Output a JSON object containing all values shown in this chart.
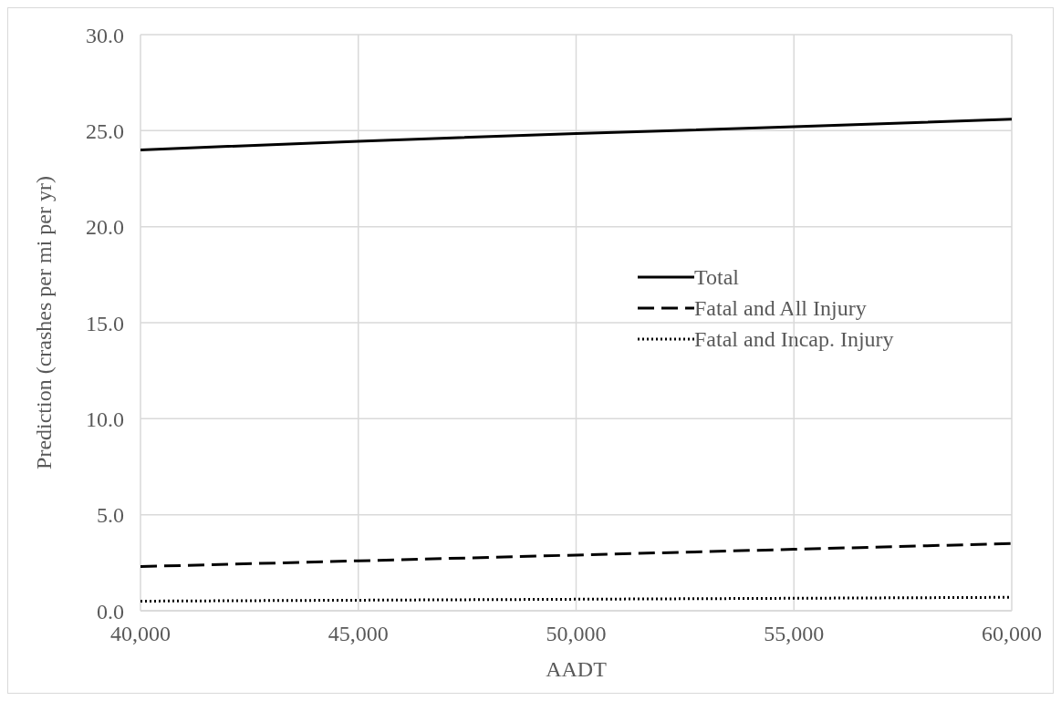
{
  "chart_data": {
    "type": "line",
    "xlabel": "AADT",
    "ylabel": "Prediction (crashes per mi per yr)",
    "x": [
      40000,
      45000,
      50000,
      55000,
      60000
    ],
    "series": [
      {
        "name": "Total",
        "color": "#000000",
        "line_style": "solid",
        "values": [
          24.0,
          24.45,
          24.85,
          25.2,
          25.6
        ]
      },
      {
        "name": "Fatal and All Injury",
        "color": "#000000",
        "line_style": "dashed",
        "values": [
          2.3,
          2.6,
          2.9,
          3.2,
          3.5
        ]
      },
      {
        "name": "Fatal and Incap. Injury",
        "color": "#000000",
        "line_style": "dotted",
        "values": [
          0.5,
          0.55,
          0.6,
          0.65,
          0.7
        ]
      }
    ],
    "xlim": [
      40000,
      60000
    ],
    "xticks": [
      {
        "value": 40000,
        "label": "40,000"
      },
      {
        "value": 45000,
        "label": "45,000"
      },
      {
        "value": 50000,
        "label": "50,000"
      },
      {
        "value": 55000,
        "label": "55,000"
      },
      {
        "value": 60000,
        "label": "60,000"
      }
    ],
    "ylim": [
      0,
      30
    ],
    "yticks": [
      {
        "value": 0,
        "label": "0.0"
      },
      {
        "value": 5,
        "label": "5.0"
      },
      {
        "value": 10,
        "label": "10.0"
      },
      {
        "value": 15,
        "label": "15.0"
      },
      {
        "value": 20,
        "label": "20.0"
      },
      {
        "value": 25,
        "label": "25.0"
      },
      {
        "value": 30,
        "label": "30.0"
      }
    ],
    "grid": true,
    "legend": "right",
    "marker": "none"
  }
}
